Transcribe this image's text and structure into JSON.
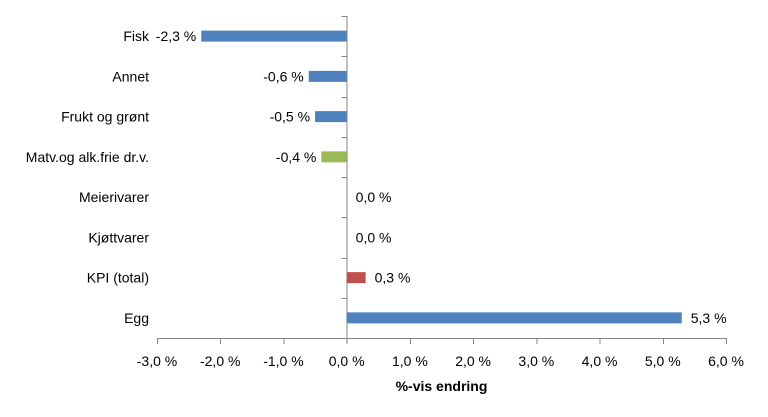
{
  "chart_data": {
    "type": "bar",
    "orientation": "horizontal",
    "xlabel": "%-vis endring",
    "xlim": [
      -3.0,
      6.0
    ],
    "x_ticks": [
      -3.0,
      -2.0,
      -1.0,
      0.0,
      1.0,
      2.0,
      3.0,
      4.0,
      5.0,
      6.0
    ],
    "x_tick_labels": [
      "-3,0 %",
      "-2,0 %",
      "-1,0 %",
      "0,0 %",
      "1,0 %",
      "2,0 %",
      "3,0 %",
      "4,0 %",
      "5,0 %",
      "6,0 %"
    ],
    "grid": false,
    "legend": "none",
    "categories": [
      "Fisk",
      "Annet",
      "Frukt og grønt",
      "Matv.og alk.frie dr.v.",
      "Meierivarer",
      "Kjøttvarer",
      "KPI (total)",
      "Egg"
    ],
    "values": [
      -2.3,
      -0.6,
      -0.5,
      -0.4,
      0.0,
      0.0,
      0.3,
      5.3
    ],
    "value_labels": [
      "-2,3 %",
      "-0,6 %",
      "-0,5 %",
      "-0,4 %",
      "0,0 %",
      "0,0 %",
      "0,3 %",
      "5,3 %"
    ],
    "colors": [
      "#4f81bd",
      "#4f81bd",
      "#4f81bd",
      "#9bbb59",
      "#4f81bd",
      "#4f81bd",
      "#c0504d",
      "#4f81bd"
    ]
  }
}
